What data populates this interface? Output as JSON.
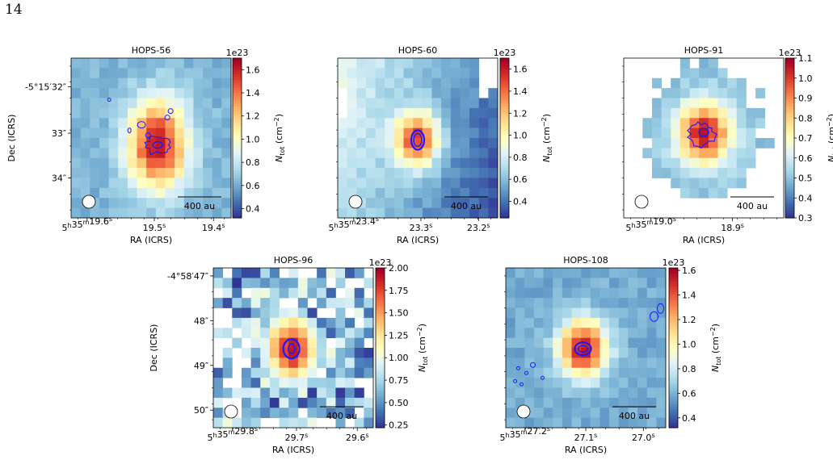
{
  "page": {
    "number": "14"
  },
  "colormap": [
    "#313695",
    "#4575b4",
    "#74add1",
    "#abd9e9",
    "#e0f3f8",
    "#ffffbf",
    "#fee090",
    "#fdae61",
    "#f46d43",
    "#d73027",
    "#a50026"
  ],
  "contour_color": "#1a1aff",
  "chart_data": [
    {
      "type": "heatmap",
      "title": "HOPS-56",
      "xlabel": "RA (ICRS)",
      "ylabel": "Dec (ICRS)",
      "xticks": [
        {
          "main": "5",
          "sup1": "h",
          "mid": "35",
          "sup2": "m",
          "tail": "19.6",
          "sup3": "s"
        },
        {
          "main": "19.5",
          "sup3": "s"
        },
        {
          "main": "19.4",
          "sup3": "s"
        }
      ],
      "yticks": [
        "-5°15′32″",
        "33″",
        "34″"
      ],
      "colorbar": {
        "exponent": "1e23",
        "label": "N_tot (cm^-2)",
        "range": [
          0.32,
          1.7
        ],
        "ticks": [
          "0.4",
          "0.6",
          "0.8",
          "1.0",
          "1.2",
          "1.4",
          "1.6"
        ]
      },
      "scalebar": "400 au",
      "beam": true,
      "grid": [
        17,
        16
      ],
      "peak": {
        "col": 9.2,
        "row": 8.7,
        "value": 1.65
      },
      "background": 0.62,
      "width": [
        3.0,
        4.2
      ]
    },
    {
      "type": "heatmap",
      "title": "HOPS-60",
      "xlabel": "RA (ICRS)",
      "ylabel": "",
      "xticks": [
        {
          "main": "5",
          "sup1": "h",
          "mid": "35",
          "sup2": "m",
          "tail": "23.4",
          "sup3": "s"
        },
        {
          "main": "23.3",
          "sup3": "s"
        },
        {
          "main": "23.2",
          "sup3": "s"
        }
      ],
      "yticks": [],
      "colorbar": {
        "exponent": "1e23",
        "label": "N_tot (cm^-2)",
        "range": [
          0.25,
          1.7
        ],
        "ticks": [
          "0.4",
          "0.6",
          "0.8",
          "1.0",
          "1.2",
          "1.4",
          "1.6"
        ]
      },
      "scalebar": "400 au",
      "beam": true,
      "grid": [
        17,
        16
      ],
      "peak": {
        "col": 8.5,
        "row": 8.2,
        "value": 1.5
      },
      "background": 0.55,
      "width": [
        2.2,
        2.6
      ]
    },
    {
      "type": "heatmap",
      "title": "HOPS-91",
      "xlabel": "RA (ICRS)",
      "ylabel": "",
      "xticks": [
        {
          "main": "5",
          "sup1": "h",
          "mid": "35",
          "sup2": "m",
          "tail": "19.0",
          "sup3": "s"
        },
        {
          "main": "18.9",
          "sup3": "s"
        }
      ],
      "yticks": [],
      "colorbar": {
        "exponent": "1e23",
        "label": "N_tot (cm^-2)",
        "range": [
          0.3,
          1.1
        ],
        "ticks": [
          "0.3",
          "0.4",
          "0.5",
          "0.6",
          "0.7",
          "0.8",
          "0.9",
          "1.0",
          "1.1"
        ]
      },
      "scalebar": "400 au",
      "beam": true,
      "grid": [
        17,
        16
      ],
      "peak": {
        "col": 8.5,
        "row": 7.6,
        "value": 1.08
      },
      "background": 0.5,
      "width": [
        2.6,
        2.8
      ]
    },
    {
      "type": "heatmap",
      "title": "HOPS-96",
      "xlabel": "RA (ICRS)",
      "ylabel": "Dec (ICRS)",
      "xticks": [
        {
          "main": "5",
          "sup1": "h",
          "mid": "35",
          "sup2": "m",
          "tail": "29.8",
          "sup3": "s"
        },
        {
          "main": "29.7",
          "sup3": "s"
        },
        {
          "main": "29.6",
          "sup3": "s"
        }
      ],
      "yticks": [
        "-4°58′47″",
        "48″",
        "49″",
        "50″"
      ],
      "colorbar": {
        "exponent": "1e23",
        "label": "N_tot (cm^-2)",
        "range": [
          0.22,
          2.0
        ],
        "ticks": [
          "0.25",
          "0.50",
          "0.75",
          "1.00",
          "1.25",
          "1.50",
          "1.75",
          "2.00"
        ]
      },
      "scalebar": "400 au",
      "beam": true,
      "grid": [
        17,
        16
      ],
      "peak": {
        "col": 8.3,
        "row": 8.1,
        "value": 1.95
      },
      "background": 0.5,
      "width": [
        2.4,
        3.0
      ]
    },
    {
      "type": "heatmap",
      "title": "HOPS-108",
      "xlabel": "RA (ICRS)",
      "ylabel": "",
      "xticks": [
        {
          "main": "5",
          "sup1": "h",
          "mid": "35",
          "sup2": "m",
          "tail": "27.2",
          "sup3": "s"
        },
        {
          "main": "27.1",
          "sup3": "s"
        },
        {
          "main": "27.0",
          "sup3": "s"
        }
      ],
      "yticks": [],
      "colorbar": {
        "exponent": "1e23",
        "label": "N_tot (cm^-2)",
        "range": [
          0.32,
          1.62
        ],
        "ticks": [
          "0.4",
          "0.6",
          "0.8",
          "1.0",
          "1.2",
          "1.4",
          "1.6"
        ]
      },
      "scalebar": "400 au",
      "beam": true,
      "grid": [
        17,
        16
      ],
      "peak": {
        "col": 8.2,
        "row": 8.1,
        "value": 1.58
      },
      "background": 0.58,
      "width": [
        2.4,
        2.7
      ]
    }
  ]
}
